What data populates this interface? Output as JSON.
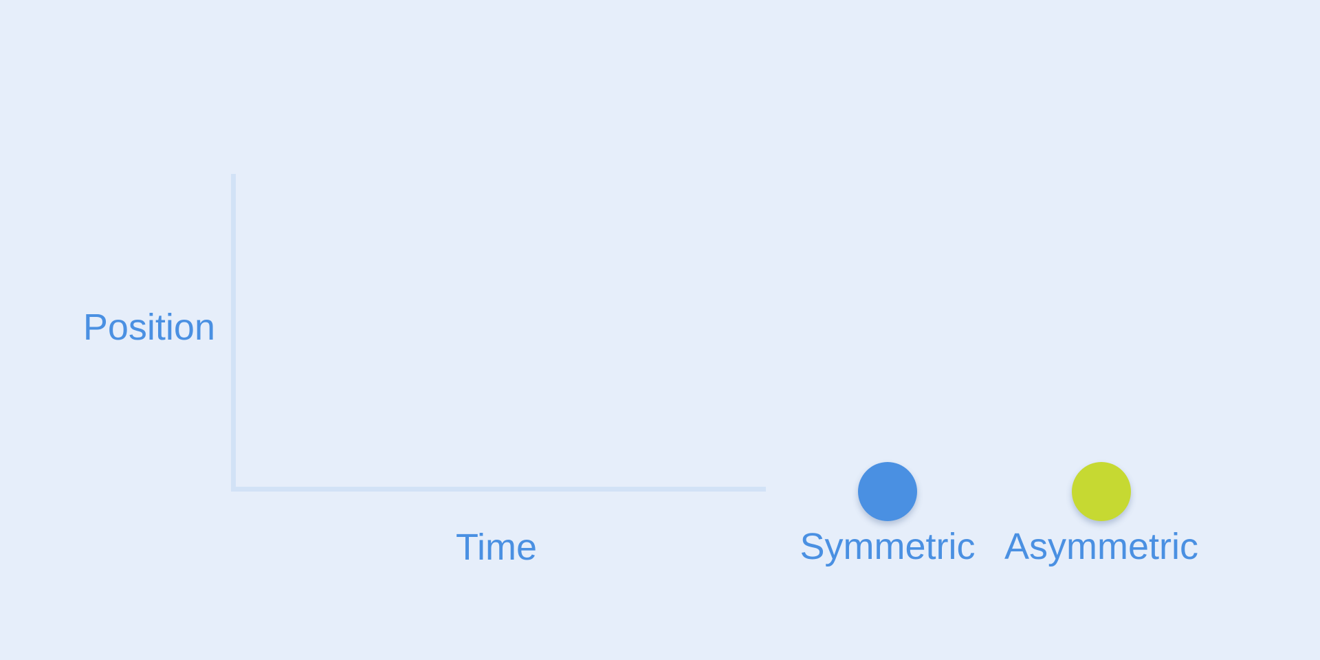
{
  "axes": {
    "y_label": "Position",
    "x_label": "Time"
  },
  "legend": [
    {
      "label": "Symmetric",
      "color": "#4a90e2"
    },
    {
      "label": "Asymmetric",
      "color": "#c6d932"
    }
  ]
}
